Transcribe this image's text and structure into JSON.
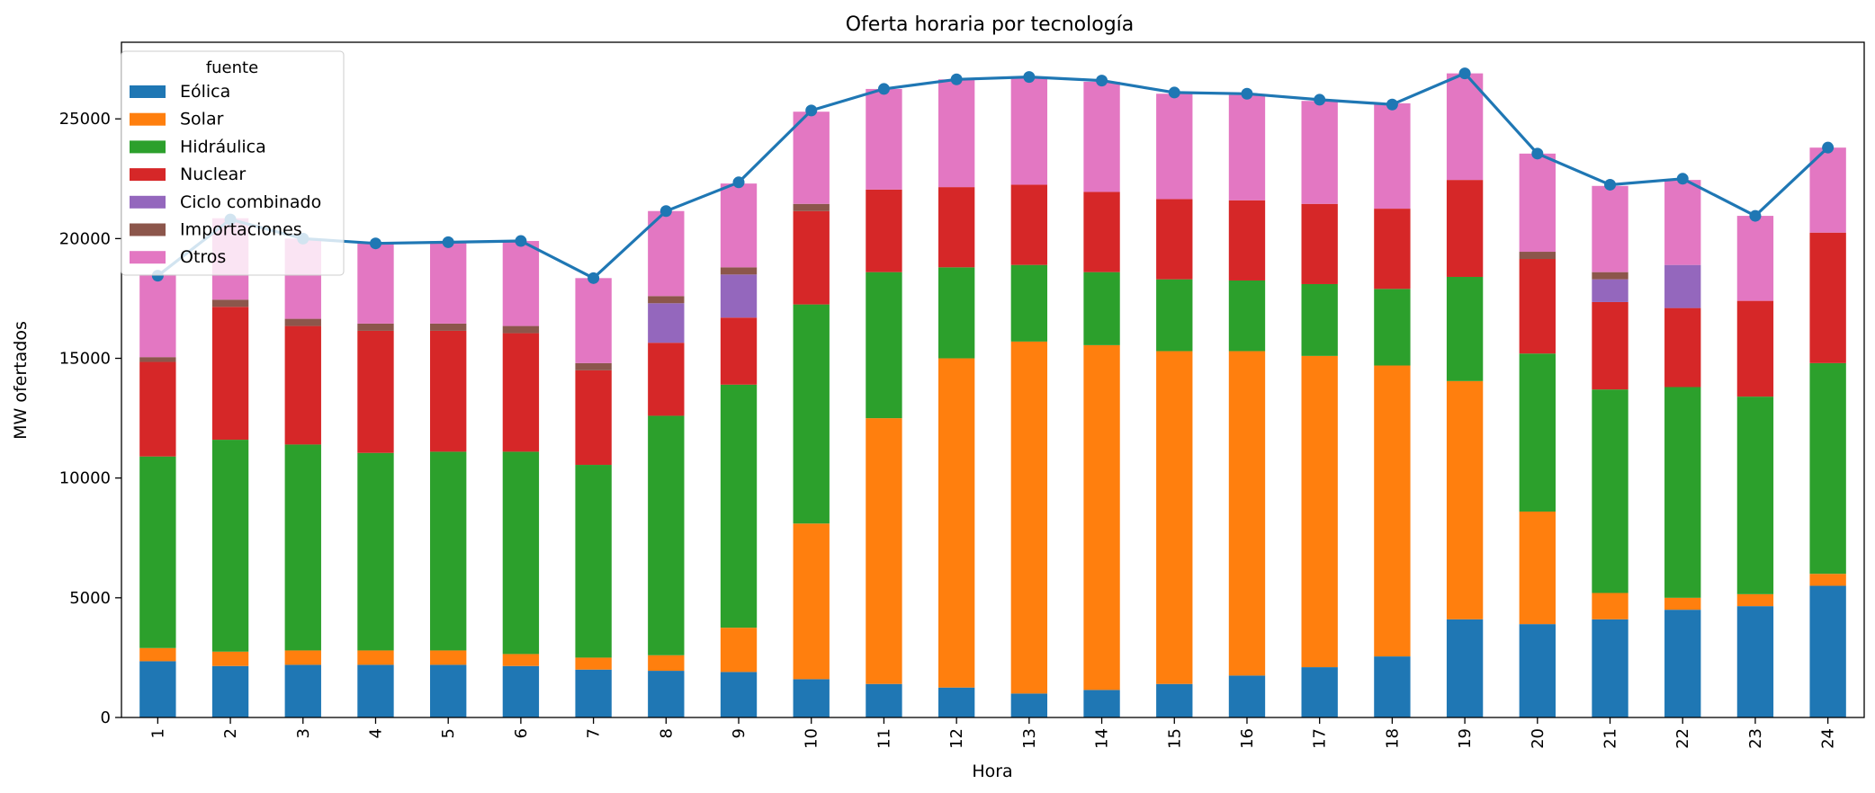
{
  "chart_data": {
    "type": "bar",
    "stacked": true,
    "title": "Oferta horaria por tecnología",
    "xlabel": "Hora",
    "ylabel": "MW ofertados",
    "ylim": [
      0,
      28200
    ],
    "yticks": [
      0,
      5000,
      10000,
      15000,
      20000,
      25000
    ],
    "grid": false,
    "legend_placement": "top-left",
    "legend_title": "fuente",
    "categories": [
      "1",
      "2",
      "3",
      "4",
      "5",
      "6",
      "7",
      "8",
      "9",
      "10",
      "11",
      "12",
      "13",
      "14",
      "15",
      "16",
      "17",
      "18",
      "19",
      "20",
      "21",
      "22",
      "23",
      "24"
    ],
    "series": [
      {
        "name": "Eólica",
        "color": "#1f77b4",
        "values": [
          2350,
          2150,
          2200,
          2200,
          2200,
          2150,
          2000,
          1950,
          1900,
          1600,
          1400,
          1250,
          1000,
          1150,
          1400,
          1750,
          2100,
          2550,
          4100,
          3900,
          4100,
          4500,
          4650,
          5500
        ]
      },
      {
        "name": "Solar",
        "color": "#ff7f0e",
        "values": [
          550,
          600,
          600,
          600,
          600,
          500,
          500,
          650,
          1850,
          6500,
          11100,
          13750,
          14700,
          14400,
          13900,
          13550,
          13000,
          12150,
          9950,
          4700,
          1100,
          500,
          500,
          500
        ]
      },
      {
        "name": "Hidráulica",
        "color": "#2ca02c",
        "values": [
          8000,
          8850,
          8600,
          8250,
          8300,
          8450,
          8050,
          10000,
          10150,
          9150,
          6100,
          3800,
          3200,
          3050,
          3000,
          2950,
          3000,
          3200,
          4350,
          6600,
          8500,
          8800,
          8250,
          8800
        ]
      },
      {
        "name": "Nuclear",
        "color": "#d62728",
        "values": [
          3950,
          5550,
          4950,
          5100,
          5050,
          4950,
          3950,
          3050,
          2800,
          3900,
          3450,
          3350,
          3350,
          3350,
          3350,
          3350,
          3350,
          3350,
          4050,
          3950,
          3650,
          3300,
          4000,
          5450
        ]
      },
      {
        "name": "Ciclo combinado",
        "color": "#9467bd",
        "values": [
          0,
          0,
          0,
          0,
          0,
          0,
          0,
          1650,
          1800,
          0,
          0,
          0,
          0,
          0,
          0,
          0,
          0,
          0,
          0,
          0,
          950,
          1800,
          0,
          0
        ]
      },
      {
        "name": "Importaciones",
        "color": "#8c564b",
        "values": [
          200,
          300,
          300,
          300,
          300,
          300,
          300,
          300,
          300,
          300,
          0,
          0,
          0,
          0,
          0,
          0,
          0,
          0,
          0,
          300,
          300,
          0,
          0,
          0
        ]
      },
      {
        "name": "Otros",
        "color": "#e377c2",
        "values": [
          3450,
          3400,
          3350,
          3350,
          3450,
          3550,
          3550,
          3550,
          3500,
          3850,
          4200,
          4500,
          4500,
          4600,
          4400,
          4400,
          4300,
          4400,
          4450,
          4100,
          3600,
          3550,
          3550,
          3550
        ]
      }
    ],
    "line": {
      "color": "#1f77b4",
      "values": [
        18450,
        20800,
        20000,
        19800,
        19850,
        19900,
        18350,
        21150,
        22350,
        25350,
        26250,
        26650,
        26750,
        26600,
        26100,
        26050,
        25800,
        25600,
        26900,
        23550,
        22250,
        22500,
        20950,
        23800
      ]
    }
  }
}
